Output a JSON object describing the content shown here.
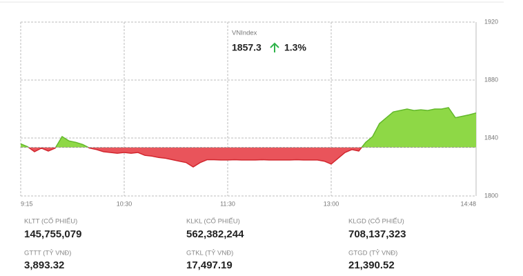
{
  "chart_data": {
    "type": "area-baseline",
    "title": "VNIndex",
    "annotations": [
      "1857.3",
      "1.3%"
    ],
    "categories": [
      "9:15",
      null,
      null,
      null,
      null,
      null,
      null,
      null,
      null,
      null,
      null,
      null,
      null,
      null,
      null,
      "10:30",
      null,
      null,
      null,
      null,
      null,
      null,
      null,
      null,
      null,
      null,
      null,
      null,
      null,
      null,
      "11:30",
      null,
      null,
      null,
      null,
      null,
      null,
      null,
      null,
      null,
      null,
      null,
      null,
      null,
      null,
      "13:00",
      null,
      null,
      null,
      null,
      null,
      null,
      null,
      null,
      null,
      null,
      null,
      null,
      null,
      null,
      null,
      null,
      null,
      null,
      null,
      null,
      "14:48"
    ],
    "values": [
      1836,
      1834,
      1830.5,
      1833,
      1831,
      1833,
      1841,
      1838,
      1837,
      1835.5,
      1833,
      1832,
      1830.5,
      1830,
      1829.5,
      1830,
      1829.5,
      1830,
      1828,
      1827.5,
      1826.5,
      1826,
      1825,
      1824,
      1823,
      1820,
      1823,
      1825,
      1825,
      1824.8,
      1824.8,
      1825,
      1824.8,
      1824.8,
      1824.8,
      1825,
      1824.8,
      1824.8,
      1824.8,
      1824.8,
      1825,
      1824.8,
      1824.8,
      1824.8,
      1824,
      1822,
      1826,
      1830,
      1832,
      1831,
      1837,
      1841,
      1850,
      1854,
      1858,
      1859,
      1860,
      1859,
      1859.5,
      1859,
      1860,
      1860,
      1861,
      1854,
      1855,
      1856,
      1857.3
    ],
    "reference": 1833.5,
    "up_color": "#8ed846",
    "down_color": "#e9545b",
    "ylim": [
      1800,
      1920
    ],
    "yticks": [
      1800,
      1840,
      1880,
      1920
    ],
    "grid": true
  },
  "stats": [
    {
      "label": "KLTT (CỔ PHIẾU)",
      "value": "145,755,079"
    },
    {
      "label": "KLKL (CỔ PHIẾU)",
      "value": "562,382,244"
    },
    {
      "label": "KLGD (CỔ PHIẾU)",
      "value": "708,137,323"
    },
    {
      "label": "GTTT (TỶ VNĐ)",
      "value": "3,893.32"
    },
    {
      "label": "GTKL (TỶ VNĐ)",
      "value": "17,497.19"
    },
    {
      "label": "GTGD (TỶ VNĐ)",
      "value": "21,390.52"
    }
  ]
}
